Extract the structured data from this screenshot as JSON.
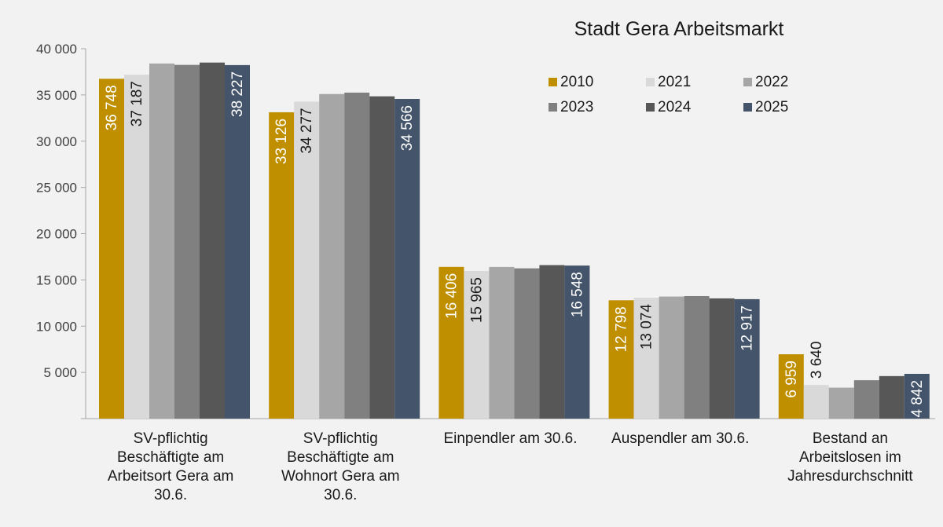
{
  "chart_data": {
    "type": "bar",
    "title": "Stadt Gera Arbeitsmarkt",
    "categories": [
      [
        "SV-pflichtig",
        "Beschäftigte am",
        "Arbeitsort Gera am",
        "30.6."
      ],
      [
        "SV-pflichtig",
        "Beschäftigte am",
        "Wohnort Gera am",
        "30.6."
      ],
      [
        "Einpendler am 30.6."
      ],
      [
        "Auspendler am 30.6."
      ],
      [
        "Bestand an",
        "Arbeitslosen im",
        "Jahresdurchschnitt"
      ]
    ],
    "series": [
      {
        "name": "2010",
        "color": "#bf8f00",
        "values": [
          36748,
          33126,
          16406,
          12798,
          6959
        ],
        "labels": [
          "36 748",
          "33 126",
          "16 406",
          "12 798",
          "6 959"
        ],
        "label_color": "#ffffff"
      },
      {
        "name": "2021",
        "color": "#d9d9d9",
        "values": [
          37187,
          34277,
          15965,
          13074,
          3640
        ],
        "labels": [
          "37 187",
          "34 277",
          "15 965",
          "13 074",
          "3 640"
        ],
        "label_color": "#1a1a1a"
      },
      {
        "name": "2022",
        "color": "#a6a6a6",
        "values": [
          38400,
          35100,
          16400,
          13200,
          3350
        ],
        "labels": null
      },
      {
        "name": "2023",
        "color": "#808080",
        "values": [
          38250,
          35250,
          16250,
          13250,
          4150
        ],
        "labels": null
      },
      {
        "name": "2024",
        "color": "#575757",
        "values": [
          38500,
          34850,
          16600,
          13000,
          4600
        ],
        "labels": null
      },
      {
        "name": "2025",
        "color": "#44546a",
        "values": [
          38227,
          34566,
          16548,
          12917,
          4842
        ],
        "labels": [
          "38 227",
          "34 566",
          "16 548",
          "12 917",
          "4 842"
        ],
        "label_color": "#ffffff"
      }
    ],
    "y_ticks": [
      {
        "value": 5000,
        "label": "5 000"
      },
      {
        "value": 10000,
        "label": "10 000"
      },
      {
        "value": 15000,
        "label": "15 000"
      },
      {
        "value": 20000,
        "label": "20 000"
      },
      {
        "value": 25000,
        "label": "25 000"
      },
      {
        "value": 30000,
        "label": "30 000"
      },
      {
        "value": 35000,
        "label": "35 000"
      },
      {
        "value": 40000,
        "label": "40 000"
      }
    ],
    "ylim": [
      0,
      40000
    ],
    "grid": false,
    "legend_position": "top-right"
  }
}
